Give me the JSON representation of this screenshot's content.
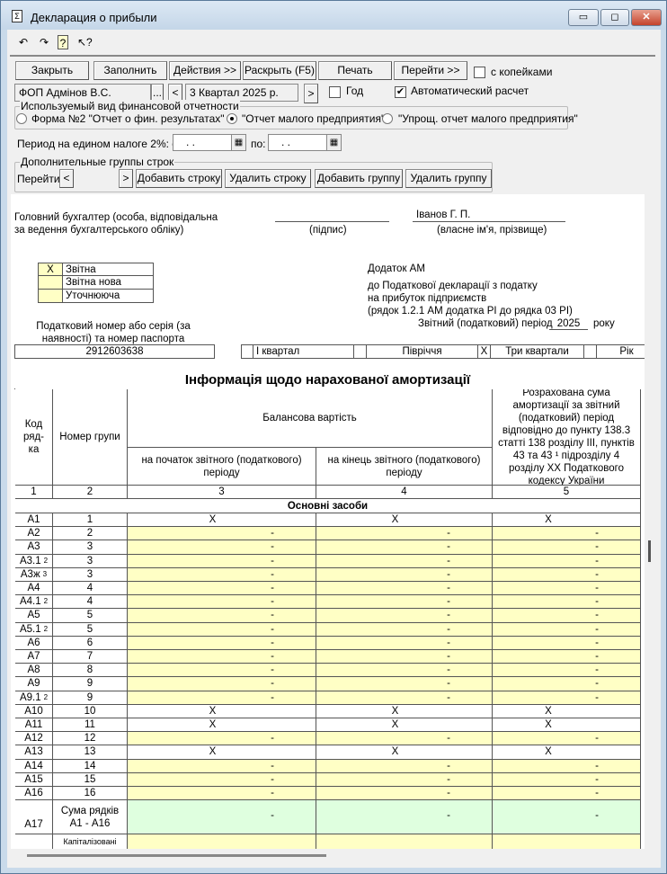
{
  "window": {
    "title": "Декларация о прибыли",
    "icon": "sigma-doc-icon"
  },
  "toolbar_icons": [
    "undo-icon",
    "redo-icon",
    "help-icon",
    "context-help-icon"
  ],
  "buttons": {
    "close": "Закрыть",
    "fill": "Заполнить",
    "actions": "Действия >>",
    "expand": "Раскрыть (F5)",
    "print": "Печать",
    "goto": "Перейти >>"
  },
  "kopecks": {
    "label": "с копейками",
    "checked": false
  },
  "org": {
    "value": "ФОП Адмінов В.С.",
    "browse": "..."
  },
  "period": {
    "prev": "<",
    "value": "3 Квартал 2025 р.",
    "next": ">"
  },
  "year": {
    "label": "Год",
    "checked": false
  },
  "auto_calc": {
    "label": "Автоматический расчет",
    "checked": true
  },
  "fin_report": {
    "legend": "Используемый вид финансовой отчетности",
    "options": [
      "Форма №2 \"Отчет о фин. результатах\"",
      "\"Отчет малого предприятия\"",
      "\"Упрощ. отчет малого предприятия\""
    ],
    "selected": 1
  },
  "single_tax": {
    "label": "Период на едином налоге 2%: с",
    "from": " .  .",
    "to_label": "по:",
    "to": " .  ."
  },
  "extra_groups": {
    "legend": "Дополнительные группы строк",
    "goto": "Перейти",
    "prev": "<",
    "next": ">",
    "add_row": "Добавить строку",
    "del_row": "Удалить строку",
    "add_group": "Добавить группу",
    "del_group": "Удалить группу"
  },
  "doc": {
    "accountant": [
      "Головний бухгалтер (особа, відповідальна",
      "за ведення бухгалтерського обліку)"
    ],
    "signature": "(підпис)",
    "name": "Іванов Г. П.",
    "name_caption": "(власне ім'я, прізвище)",
    "type_marks": [
      {
        "mark": "X",
        "label": "Звітна"
      },
      {
        "mark": "",
        "label": "Звітна нова"
      },
      {
        "mark": "",
        "label": "Уточнююча"
      }
    ],
    "annex_title": "Додаток АМ",
    "annex_lines": [
      "до Податкової декларації з податку",
      "на прибуток підприємств",
      "(рядок 1.2.1 АМ додатка РІ до рядка 03 РІ)"
    ],
    "period_label": "Звітний  (податковий) період",
    "year": "2025",
    "year_suffix": "року",
    "tax_id_label": [
      "Податковий номер або серія (за",
      "наявності) та номер паспорта"
    ],
    "tax_id": "2912603638",
    "quarters": [
      {
        "mark": "",
        "label": "І квартал"
      },
      {
        "mark": "",
        "label": "Півріччя"
      },
      {
        "mark": "X",
        "label": "Три квартали"
      },
      {
        "mark": "",
        "label": "Рік"
      }
    ],
    "table_title": "Інформація щодо нарахованої амортизації",
    "headers": {
      "code": "Код ряд-ка",
      "group": "Номер групи",
      "balance": "Балансова вартість",
      "start": "на початок звітного (податкового) періоду",
      "end": "на кінець звітного (податкового) періоду",
      "amort": "Розрахована сума амортизації за звітний (податковий) період відповідно до пункту 138.3 статті 138 розділу ІІІ, пунктів 43 та 43 ¹ підрозділу 4 розділу ХХ Податкового кодексу України"
    },
    "col_numbers": [
      "1",
      "2",
      "3",
      "4",
      "5"
    ],
    "section": "Основні засоби",
    "rows": [
      {
        "code": "А1",
        "sup": "",
        "group": "1",
        "v": [
          "X",
          "X",
          "X"
        ],
        "fill": "white"
      },
      {
        "code": "А2",
        "sup": "",
        "group": "2",
        "v": [
          "-",
          "-",
          "-"
        ],
        "fill": "yellow"
      },
      {
        "code": "А3",
        "sup": "",
        "group": "3",
        "v": [
          "-",
          "-",
          "-"
        ],
        "fill": "yellow"
      },
      {
        "code": "А3.1",
        "sup": "2",
        "group": "3",
        "v": [
          "-",
          "-",
          "-"
        ],
        "fill": "yellow"
      },
      {
        "code": "А3ж",
        "sup": "3",
        "group": "3",
        "v": [
          "-",
          "-",
          "-"
        ],
        "fill": "yellow"
      },
      {
        "code": "А4",
        "sup": "",
        "group": "4",
        "v": [
          "-",
          "-",
          "-"
        ],
        "fill": "yellow"
      },
      {
        "code": "А4.1",
        "sup": "2",
        "group": "4",
        "v": [
          "-",
          "-",
          "-"
        ],
        "fill": "yellow"
      },
      {
        "code": "А5",
        "sup": "",
        "group": "5",
        "v": [
          "-",
          "-",
          "-"
        ],
        "fill": "yellow"
      },
      {
        "code": "А5.1",
        "sup": "2",
        "group": "5",
        "v": [
          "-",
          "-",
          "-"
        ],
        "fill": "yellow"
      },
      {
        "code": "А6",
        "sup": "",
        "group": "6",
        "v": [
          "-",
          "-",
          "-"
        ],
        "fill": "yellow"
      },
      {
        "code": "А7",
        "sup": "",
        "group": "7",
        "v": [
          "-",
          "-",
          "-"
        ],
        "fill": "yellow"
      },
      {
        "code": "А8",
        "sup": "",
        "group": "8",
        "v": [
          "-",
          "-",
          "-"
        ],
        "fill": "yellow"
      },
      {
        "code": "А9",
        "sup": "",
        "group": "9",
        "v": [
          "-",
          "-",
          "-"
        ],
        "fill": "yellow"
      },
      {
        "code": "А9.1",
        "sup": "2",
        "group": "9",
        "v": [
          "-",
          "-",
          "-"
        ],
        "fill": "yellow"
      },
      {
        "code": "А10",
        "sup": "",
        "group": "10",
        "v": [
          "X",
          "X",
          "X"
        ],
        "fill": "white"
      },
      {
        "code": "А11",
        "sup": "",
        "group": "11",
        "v": [
          "X",
          "X",
          "X"
        ],
        "fill": "white"
      },
      {
        "code": "А12",
        "sup": "",
        "group": "12",
        "v": [
          "-",
          "-",
          "-"
        ],
        "fill": "yellow"
      },
      {
        "code": "А13",
        "sup": "",
        "group": "13",
        "v": [
          "X",
          "X",
          "X"
        ],
        "fill": "white"
      },
      {
        "code": "А14",
        "sup": "",
        "group": "14",
        "v": [
          "-",
          "-",
          "-"
        ],
        "fill": "yellow"
      },
      {
        "code": "А15",
        "sup": "",
        "group": "15",
        "v": [
          "-",
          "-",
          "-"
        ],
        "fill": "yellow"
      },
      {
        "code": "А16",
        "sup": "",
        "group": "16",
        "v": [
          "-",
          "-",
          "-"
        ],
        "fill": "yellow"
      }
    ],
    "sum_row": {
      "code": "А17",
      "group": "Сума рядків А1 - А16",
      "v": [
        "-",
        "-",
        "-"
      ],
      "fill": "green"
    },
    "cap_row": {
      "group": "Капіталізовані проценти, включені до"
    }
  },
  "colors": {
    "yellow": "#ffffc5",
    "green": "#dfffdf"
  }
}
